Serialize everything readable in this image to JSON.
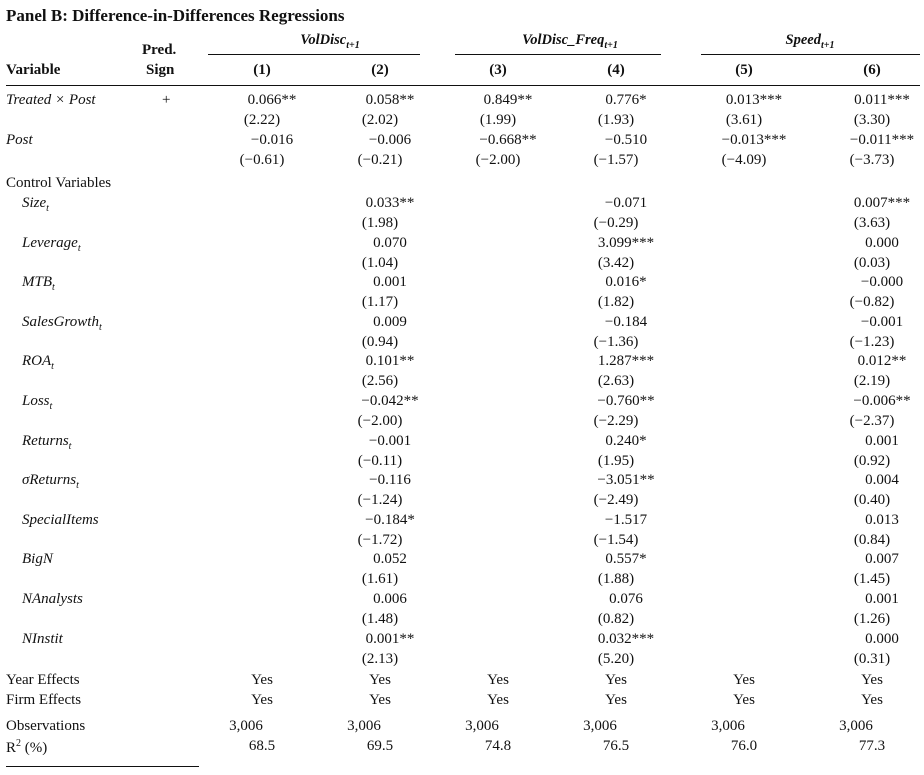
{
  "title": "Panel B: Difference-in-Differences Regressions",
  "header": {
    "variable": "Variable",
    "pred_line1": "Pred.",
    "pred_line2": "Sign",
    "groups": [
      {
        "main": "VolDisc",
        "sub": "t+1"
      },
      {
        "main": "VolDisc_Freq",
        "sub": "t+1"
      },
      {
        "main": "Speed",
        "sub": "t+1"
      }
    ],
    "columns": [
      "(1)",
      "(2)",
      "(3)",
      "(4)",
      "(5)",
      "(6)"
    ]
  },
  "main_rows": [
    {
      "label": "Treated × Post",
      "sign": "+",
      "coef": [
        "0.066**",
        "0.058**",
        "0.849**",
        "0.776*",
        "0.013***",
        "0.011***"
      ],
      "t": [
        "(2.22)",
        "(2.02)",
        "(1.99)",
        "(1.93)",
        "(3.61)",
        "(3.30)"
      ]
    },
    {
      "label": "Post",
      "sign": "",
      "coef": [
        "−0.016",
        "−0.006",
        "−0.668**",
        "−0.510",
        "−0.013***",
        "−0.011***"
      ],
      "t": [
        "(−0.61)",
        "(−0.21)",
        "(−2.00)",
        "(−1.57)",
        "(−4.09)",
        "(−3.73)"
      ]
    }
  ],
  "controls_label": "Control Variables",
  "controls": [
    {
      "name": "Size",
      "sub": "t",
      "c2": "0.033**",
      "t2": "(1.98)",
      "c4": "−0.071",
      "t4": "(−0.29)",
      "c6": "0.007***",
      "t6": "(3.63)"
    },
    {
      "name": "Leverage",
      "sub": "t",
      "c2": "0.070",
      "t2": "(1.04)",
      "c4": "3.099***",
      "t4": "(3.42)",
      "c6": "0.000",
      "t6": "(0.03)"
    },
    {
      "name": "MTB",
      "sub": "t",
      "c2": "0.001",
      "t2": "(1.17)",
      "c4": "0.016*",
      "t4": "(1.82)",
      "c6": "−0.000",
      "t6": "(−0.82)"
    },
    {
      "name": "SalesGrowth",
      "sub": "t",
      "c2": "0.009",
      "t2": "(0.94)",
      "c4": "−0.184",
      "t4": "(−1.36)",
      "c6": "−0.001",
      "t6": "(−1.23)"
    },
    {
      "name": "ROA",
      "sub": "t",
      "c2": "0.101**",
      "t2": "(2.56)",
      "c4": "1.287***",
      "t4": "(2.63)",
      "c6": "0.012**",
      "t6": "(2.19)"
    },
    {
      "name": "Loss",
      "sub": "t",
      "c2": "−0.042**",
      "t2": "(−2.00)",
      "c4": "−0.760**",
      "t4": "(−2.29)",
      "c6": "−0.006**",
      "t6": "(−2.37)"
    },
    {
      "name": "Returns",
      "sub": "t",
      "c2": "−0.001",
      "t2": "(−0.11)",
      "c4": "0.240*",
      "t4": "(1.95)",
      "c6": "0.001",
      "t6": "(0.92)"
    },
    {
      "name": "σReturns",
      "sub": "t",
      "c2": "−0.116",
      "t2": "(−1.24)",
      "c4": "−3.051**",
      "t4": "(−2.49)",
      "c6": "0.004",
      "t6": "(0.40)"
    },
    {
      "name": "SpecialItems",
      "sub": "",
      "c2": "−0.184*",
      "t2": "(−1.72)",
      "c4": "−1.517",
      "t4": "(−1.54)",
      "c6": "0.013",
      "t6": "(0.84)"
    },
    {
      "name": "BigN",
      "sub": "",
      "c2": "0.052",
      "t2": "(1.61)",
      "c4": "0.557*",
      "t4": "(1.88)",
      "c6": "0.007",
      "t6": "(1.45)"
    },
    {
      "name": "NAnalysts",
      "sub": "",
      "c2": "0.006",
      "t2": "(1.48)",
      "c4": "0.076",
      "t4": "(0.82)",
      "c6": "0.001",
      "t6": "(1.26)"
    },
    {
      "name": "NInstit",
      "sub": "",
      "c2": "0.001**",
      "t2": "(2.13)",
      "c4": "0.032***",
      "t4": "(5.20)",
      "c6": "0.000",
      "t6": "(0.31)"
    }
  ],
  "effects": [
    {
      "label": "Year Effects",
      "values": [
        "Yes",
        "Yes",
        "Yes",
        "Yes",
        "Yes",
        "Yes"
      ]
    },
    {
      "label": "Firm Effects",
      "values": [
        "Yes",
        "Yes",
        "Yes",
        "Yes",
        "Yes",
        "Yes"
      ]
    }
  ],
  "observations": {
    "label": "Observations",
    "values": [
      "3,006",
      "3,006",
      "3,006",
      "3,006",
      "3,006",
      "3,006"
    ]
  },
  "r2": {
    "label": "R",
    "sup": "2",
    "suffix": " (%)",
    "values": [
      "68.5",
      "69.5",
      "74.8",
      "76.5",
      "76.0",
      "77.3"
    ]
  }
}
